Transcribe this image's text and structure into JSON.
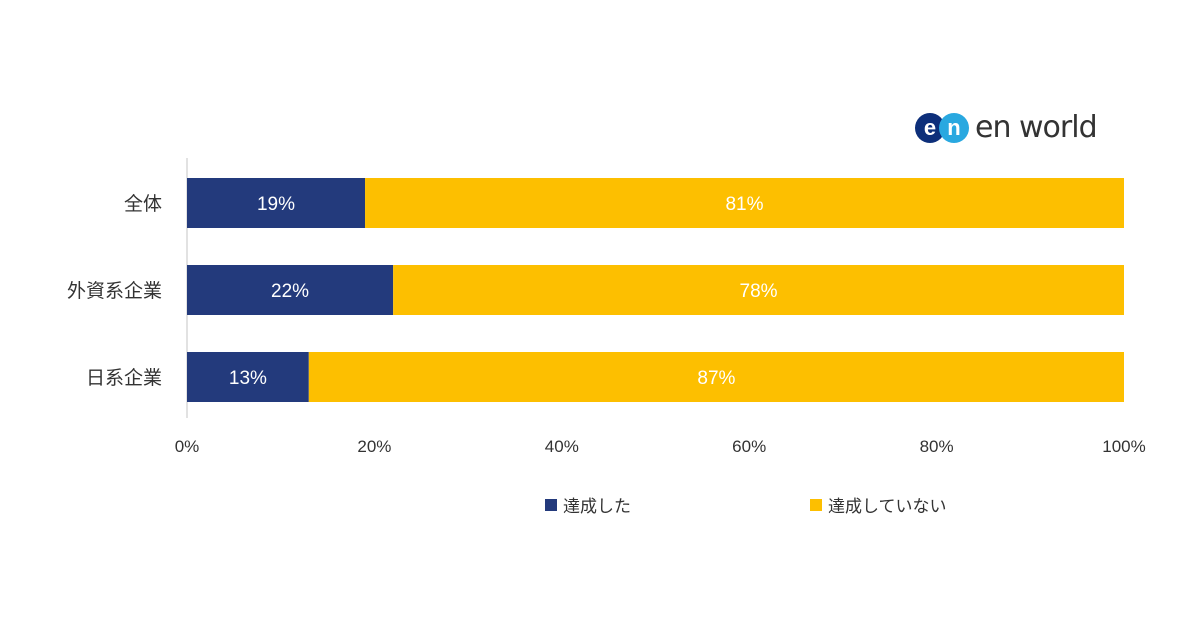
{
  "logo": {
    "mark_e": "e",
    "mark_n": "n",
    "text": "en world"
  },
  "chart_data": {
    "type": "bar",
    "orientation": "horizontal",
    "stacked": true,
    "categories": [
      "全体",
      "外資系企業",
      "日系企業"
    ],
    "series": [
      {
        "name": "達成した",
        "values": [
          19,
          22,
          13
        ],
        "color": "#233a7c"
      },
      {
        "name": "達成していない",
        "values": [
          81,
          78,
          87
        ],
        "color": "#fdbf00"
      }
    ],
    "data_labels": [
      [
        "19%",
        "22%",
        "13%"
      ],
      [
        "81%",
        "78%",
        "87%"
      ]
    ],
    "xlim": [
      0,
      100
    ],
    "xticks": [
      "0%",
      "20%",
      "40%",
      "60%",
      "80%",
      "100%"
    ],
    "legend_position": "bottom",
    "grid": false
  }
}
